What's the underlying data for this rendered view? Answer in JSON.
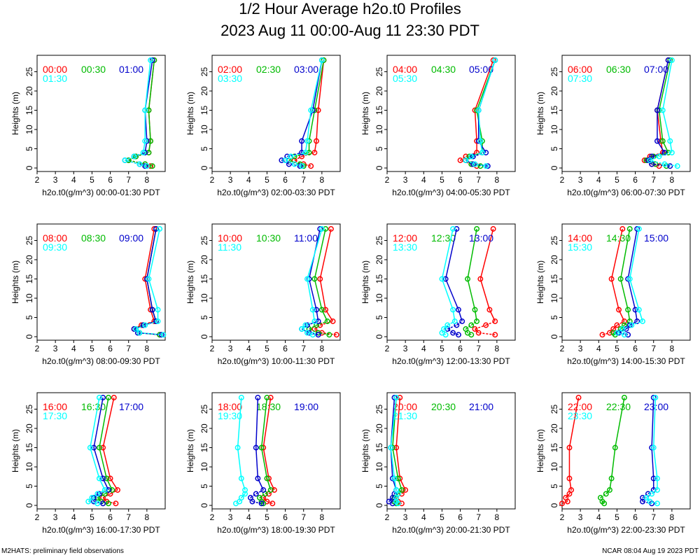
{
  "title": "1/2 Hour Average h2o.t0 Profiles",
  "subtitle": "2023 Aug 11 00:00-Aug 11 23:30 PDT",
  "footer_left": "M2HATS: preliminary field observations",
  "footer_right": "NCAR 08:04 Aug 19 2023 PDT",
  "colors": {
    "first": "#ff0000",
    "second": "#0000cc",
    "third": "#00ffff",
    "fourth": "#00bb00"
  },
  "chart_data": [
    {
      "type": "line",
      "xlabel": "h2o.t0(g/m^3) 00:00-01:30 PDT",
      "ylabel": "Heights (m)",
      "xlim": [
        2,
        9
      ],
      "ylim": [
        0,
        28
      ],
      "x_ticks": [
        2,
        3,
        4,
        5,
        6,
        7,
        8
      ],
      "y_ticks": [
        0,
        5,
        10,
        15,
        20,
        25
      ],
      "heights": [
        0.5,
        1,
        2,
        3,
        4,
        7,
        15,
        28
      ],
      "series": [
        {
          "name": "00:00",
          "color": "red",
          "values": [
            8.2,
            7.9,
            7.0,
            7.4,
            8.1,
            8.2,
            8.1,
            8.4
          ]
        },
        {
          "name": "00:30",
          "color": "green",
          "values": [
            8.3,
            7.9,
            7.0,
            7.4,
            8.1,
            8.2,
            8.1,
            8.4
          ]
        },
        {
          "name": "01:00",
          "color": "blue",
          "values": [
            7.9,
            7.6,
            6.8,
            7.3,
            7.9,
            8.0,
            7.9,
            8.3
          ]
        },
        {
          "name": "01:30",
          "color": "cyan",
          "values": [
            8.0,
            7.6,
            6.8,
            7.3,
            7.8,
            7.9,
            7.9,
            8.2
          ]
        }
      ]
    },
    {
      "type": "line",
      "xlabel": "h2o.t0(g/m^3) 02:00-03:30 PDT",
      "ylabel": "Heights (m)",
      "xlim": [
        2,
        9
      ],
      "ylim": [
        0,
        28
      ],
      "x_ticks": [
        2,
        3,
        4,
        5,
        6,
        7,
        8
      ],
      "y_ticks": [
        0,
        5,
        10,
        15,
        20,
        25
      ],
      "heights": [
        0.5,
        1,
        2,
        3,
        4,
        7,
        15,
        28
      ],
      "series": [
        {
          "name": "02:00",
          "color": "red",
          "values": [
            7.4,
            7.0,
            6.5,
            6.9,
            7.6,
            7.7,
            7.8,
            8.1
          ]
        },
        {
          "name": "02:30",
          "color": "green",
          "values": [
            7.0,
            6.8,
            6.2,
            6.5,
            7.3,
            7.3,
            7.6,
            8.1
          ]
        },
        {
          "name": "03:00",
          "color": "blue",
          "values": [
            6.8,
            6.2,
            5.8,
            6.1,
            6.9,
            6.9,
            7.5,
            8.0
          ]
        },
        {
          "name": "03:30",
          "color": "cyan",
          "values": [
            6.9,
            6.5,
            6.0,
            6.3,
            7.1,
            7.2,
            7.4,
            8.0
          ]
        }
      ]
    },
    {
      "type": "line",
      "xlabel": "h2o.t0(g/m^3) 04:00-05:30 PDT",
      "ylabel": "Heights (m)",
      "xlim": [
        2,
        9
      ],
      "ylim": [
        0,
        28
      ],
      "x_ticks": [
        2,
        3,
        4,
        5,
        6,
        7,
        8
      ],
      "y_ticks": [
        0,
        5,
        10,
        15,
        20,
        25
      ],
      "heights": [
        0.5,
        1,
        2,
        3,
        4,
        7,
        15,
        28
      ],
      "series": [
        {
          "name": "04:00",
          "color": "red",
          "values": [
            6.9,
            6.6,
            6.0,
            6.3,
            6.9,
            6.9,
            6.8,
            7.8
          ]
        },
        {
          "name": "04:30",
          "color": "green",
          "values": [
            7.1,
            6.6,
            6.3,
            6.5,
            7.2,
            7.2,
            6.9,
            7.9
          ]
        },
        {
          "name": "05:00",
          "color": "blue",
          "values": [
            7.5,
            6.7,
            6.3,
            6.7,
            7.4,
            7.0,
            7.0,
            7.9
          ]
        },
        {
          "name": "05:30",
          "color": "cyan",
          "values": [
            7.4,
            6.8,
            6.3,
            6.6,
            7.2,
            7.1,
            7.0,
            7.9
          ]
        }
      ]
    },
    {
      "type": "line",
      "xlabel": "h2o.t0(g/m^3) 06:00-07:30 PDT",
      "ylabel": "Heights (m)",
      "xlim": [
        2,
        9
      ],
      "ylim": [
        0,
        28
      ],
      "x_ticks": [
        2,
        3,
        4,
        5,
        6,
        7,
        8
      ],
      "y_ticks": [
        0,
        5,
        10,
        15,
        20,
        25
      ],
      "heights": [
        0.5,
        1,
        2,
        3,
        4,
        7,
        15,
        28
      ],
      "series": [
        {
          "name": "06:00",
          "color": "red",
          "values": [
            7.3,
            6.9,
            6.5,
            6.8,
            7.5,
            7.4,
            7.2,
            7.8
          ]
        },
        {
          "name": "06:30",
          "color": "green",
          "values": [
            7.7,
            7.1,
            6.6,
            7.0,
            7.8,
            7.5,
            7.3,
            7.9
          ]
        },
        {
          "name": "07:00",
          "color": "blue",
          "values": [
            7.9,
            6.9,
            6.7,
            6.9,
            7.6,
            7.2,
            7.2,
            7.8
          ]
        },
        {
          "name": "07:30",
          "color": "cyan",
          "values": [
            8.3,
            7.6,
            6.8,
            7.3,
            8.0,
            7.9,
            7.5,
            8.0
          ]
        }
      ]
    },
    {
      "type": "line",
      "xlabel": "h2o.t0(g/m^3) 08:00-09:30 PDT",
      "ylabel": "Heights (m)",
      "xlim": [
        2,
        9
      ],
      "ylim": [
        0,
        28
      ],
      "x_ticks": [
        2,
        3,
        4,
        5,
        6,
        7,
        8
      ],
      "y_ticks": [
        0,
        5,
        10,
        15,
        20,
        25
      ],
      "heights": [
        0.5,
        1,
        2,
        3,
        4,
        7,
        15,
        28
      ],
      "series": [
        {
          "name": "08:00",
          "color": "red",
          "values": [
            8.7,
            7.6,
            7.3,
            7.7,
            8.4,
            8.2,
            7.9,
            8.4
          ]
        },
        {
          "name": "08:30",
          "color": "green",
          "values": [
            8.7,
            7.6,
            7.4,
            7.8,
            8.5,
            8.3,
            8.0,
            8.5
          ]
        },
        {
          "name": "09:00",
          "color": "blue",
          "values": [
            8.8,
            7.5,
            7.3,
            7.8,
            8.5,
            8.3,
            8.0,
            8.5
          ]
        },
        {
          "name": "09:30",
          "color": "cyan",
          "values": [
            8.9,
            7.6,
            7.4,
            7.9,
            8.6,
            8.6,
            8.1,
            8.7
          ]
        }
      ]
    },
    {
      "type": "line",
      "xlabel": "h2o.t0(g/m^3) 10:00-11:30 PDT",
      "ylabel": "Heights (m)",
      "xlim": [
        2,
        9
      ],
      "ylim": [
        0,
        28
      ],
      "x_ticks": [
        2,
        3,
        4,
        5,
        6,
        7,
        8
      ],
      "y_ticks": [
        0,
        5,
        10,
        15,
        20,
        25
      ],
      "heights": [
        0.5,
        1,
        2,
        3,
        4,
        7,
        15,
        28
      ],
      "series": [
        {
          "name": "10:00",
          "color": "red",
          "values": [
            8.8,
            8.0,
            7.6,
            7.9,
            8.6,
            8.2,
            7.9,
            8.5
          ]
        },
        {
          "name": "10:30",
          "color": "green",
          "values": [
            8.4,
            7.8,
            7.3,
            7.7,
            8.3,
            8.0,
            7.6,
            8.2
          ]
        },
        {
          "name": "11:00",
          "color": "blue",
          "values": [
            7.8,
            7.3,
            6.9,
            7.2,
            7.8,
            7.7,
            7.3,
            7.9
          ]
        },
        {
          "name": "11:30",
          "color": "cyan",
          "values": [
            7.5,
            7.2,
            6.9,
            7.1,
            7.6,
            7.5,
            7.2,
            8.0
          ]
        }
      ]
    },
    {
      "type": "line",
      "xlabel": "h2o.t0(g/m^3) 12:00-13:30 PDT",
      "ylabel": "Heights (m)",
      "xlim": [
        2,
        9
      ],
      "ylim": [
        0,
        28
      ],
      "x_ticks": [
        2,
        3,
        4,
        5,
        6,
        7,
        8
      ],
      "y_ticks": [
        0,
        5,
        10,
        15,
        20,
        25
      ],
      "heights": [
        0.5,
        1,
        2,
        3,
        4,
        7,
        15,
        28
      ],
      "series": [
        {
          "name": "12:00",
          "color": "red",
          "values": [
            7.9,
            7.0,
            6.8,
            7.4,
            7.9,
            7.6,
            7.1,
            7.8
          ]
        },
        {
          "name": "12:30",
          "color": "green",
          "values": [
            6.6,
            6.4,
            6.3,
            6.6,
            6.9,
            6.8,
            6.4,
            6.9
          ]
        },
        {
          "name": "13:00",
          "color": "blue",
          "values": [
            5.9,
            5.6,
            5.3,
            5.8,
            6.1,
            5.9,
            5.2,
            5.8
          ]
        },
        {
          "name": "13:30",
          "color": "cyan",
          "values": [
            5.2,
            5.0,
            5.1,
            5.3,
            5.7,
            5.6,
            5.0,
            5.6
          ]
        }
      ]
    },
    {
      "type": "line",
      "xlabel": "h2o.t0(g/m^3) 14:00-15:30 PDT",
      "ylabel": "Heights (m)",
      "xlim": [
        2,
        9
      ],
      "ylim": [
        0,
        28
      ],
      "x_ticks": [
        2,
        3,
        4,
        5,
        6,
        7,
        8
      ],
      "y_ticks": [
        0,
        5,
        10,
        15,
        20,
        25
      ],
      "heights": [
        0.5,
        1,
        2,
        3,
        4,
        7,
        15,
        28
      ],
      "series": [
        {
          "name": "14:00",
          "color": "red",
          "values": [
            4.2,
            4.6,
            4.8,
            5.0,
            5.4,
            5.1,
            4.7,
            5.3
          ]
        },
        {
          "name": "14:30",
          "color": "green",
          "values": [
            4.9,
            4.8,
            5.2,
            5.4,
            5.7,
            5.6,
            5.2,
            5.7
          ]
        },
        {
          "name": "15:00",
          "color": "blue",
          "values": [
            5.6,
            5.1,
            5.5,
            5.7,
            6.1,
            6.0,
            5.6,
            6.1
          ]
        },
        {
          "name": "15:30",
          "color": "cyan",
          "values": [
            5.4,
            5.0,
            5.3,
            5.8,
            6.4,
            6.2,
            5.7,
            6.2
          ]
        }
      ]
    },
    {
      "type": "line",
      "xlabel": "h2o.t0(g/m^3) 16:00-17:30 PDT",
      "ylabel": "Heights (m)",
      "xlim": [
        2,
        9
      ],
      "ylim": [
        0,
        28
      ],
      "x_ticks": [
        2,
        3,
        4,
        5,
        6,
        7,
        8
      ],
      "y_ticks": [
        0,
        5,
        10,
        15,
        20,
        25
      ],
      "heights": [
        0.5,
        1,
        2,
        3,
        4,
        7,
        15,
        28
      ],
      "series": [
        {
          "name": "16:00",
          "color": "red",
          "values": [
            6.3,
            5.8,
            5.6,
            6.0,
            6.4,
            6.0,
            5.6,
            6.2
          ]
        },
        {
          "name": "16:30",
          "color": "green",
          "values": [
            5.9,
            5.5,
            5.3,
            5.7,
            6.1,
            5.8,
            5.4,
            5.9
          ]
        },
        {
          "name": "17:00",
          "color": "blue",
          "values": [
            5.6,
            5.1,
            5.1,
            5.4,
            5.9,
            5.6,
            5.1,
            5.6
          ]
        },
        {
          "name": "17:30",
          "color": "cyan",
          "values": [
            5.3,
            4.8,
            5.0,
            5.3,
            5.7,
            5.4,
            4.9,
            5.4
          ]
        }
      ]
    },
    {
      "type": "line",
      "xlabel": "h2o.t0(g/m^3) 18:00-19:30 PDT",
      "ylabel": "Heights (m)",
      "xlim": [
        2,
        9
      ],
      "ylim": [
        0,
        28
      ],
      "x_ticks": [
        2,
        3,
        4,
        5,
        6,
        7,
        8
      ],
      "y_ticks": [
        0,
        5,
        10,
        15,
        20,
        25
      ],
      "heights": [
        0.5,
        1,
        2,
        3,
        4,
        7,
        15,
        28
      ],
      "series": [
        {
          "name": "18:00",
          "color": "red",
          "values": [
            5.3,
            5.0,
            4.8,
            5.1,
            5.4,
            5.1,
            4.8,
            5.2
          ]
        },
        {
          "name": "18:30",
          "color": "green",
          "values": [
            4.8,
            4.7,
            4.6,
            4.9,
            5.2,
            5.0,
            4.7,
            5.0
          ]
        },
        {
          "name": "19:00",
          "color": "blue",
          "values": [
            4.7,
            4.2,
            4.1,
            4.4,
            4.8,
            4.5,
            4.4,
            4.5
          ]
        },
        {
          "name": "19:30",
          "color": "cyan",
          "values": [
            3.3,
            3.5,
            3.6,
            3.8,
            3.8,
            3.6,
            3.4,
            3.6
          ]
        }
      ]
    },
    {
      "type": "line",
      "xlabel": "h2o.t0(g/m^3) 20:00-21:30 PDT",
      "ylabel": "Heights (m)",
      "xlim": [
        2,
        9
      ],
      "ylim": [
        0,
        28
      ],
      "x_ticks": [
        2,
        3,
        4,
        5,
        6,
        7,
        8
      ],
      "y_ticks": [
        0,
        5,
        10,
        15,
        20,
        25
      ],
      "heights": [
        0.5,
        1,
        2,
        3,
        4,
        7,
        15,
        28
      ],
      "series": [
        {
          "name": "20:00",
          "color": "red",
          "values": [
            2.8,
            2.6,
            2.5,
            2.8,
            3.0,
            2.7,
            2.5,
            2.7
          ]
        },
        {
          "name": "20:30",
          "color": "green",
          "values": [
            2.5,
            2.4,
            2.4,
            2.6,
            2.8,
            2.6,
            2.3,
            2.5
          ]
        },
        {
          "name": "21:00",
          "color": "blue",
          "values": [
            2.3,
            2.1,
            2.3,
            2.4,
            2.5,
            2.3,
            2.2,
            2.4
          ]
        },
        {
          "name": "21:30",
          "color": "cyan",
          "values": [
            2.6,
            2.5,
            2.5,
            2.6,
            2.5,
            2.4,
            2.2,
            2.5
          ]
        }
      ]
    },
    {
      "type": "line",
      "xlabel": "h2o.t0(g/m^3) 22:00-23:30 PDT",
      "ylabel": "Heights (m)",
      "xlim": [
        2,
        9
      ],
      "ylim": [
        0,
        28
      ],
      "x_ticks": [
        2,
        3,
        4,
        5,
        6,
        7,
        8
      ],
      "y_ticks": [
        0,
        5,
        10,
        15,
        20,
        25
      ],
      "heights": [
        0.5,
        1,
        2,
        3,
        4,
        7,
        15,
        28
      ],
      "series": [
        {
          "name": "22:00",
          "color": "red",
          "values": [
            2.0,
            2.3,
            2.2,
            2.4,
            2.5,
            2.4,
            2.4,
            2.9
          ]
        },
        {
          "name": "22:30",
          "color": "green",
          "values": [
            4.3,
            4.2,
            4.1,
            4.4,
            4.6,
            4.7,
            4.9,
            5.4
          ]
        },
        {
          "name": "23:00",
          "color": "blue",
          "values": [
            6.9,
            6.4,
            6.4,
            6.7,
            7.0,
            7.0,
            6.9,
            7.0
          ]
        },
        {
          "name": "23:30",
          "color": "cyan",
          "values": [
            7.2,
            6.8,
            6.6,
            6.9,
            7.2,
            7.2,
            7.0,
            7.1
          ]
        }
      ]
    }
  ]
}
